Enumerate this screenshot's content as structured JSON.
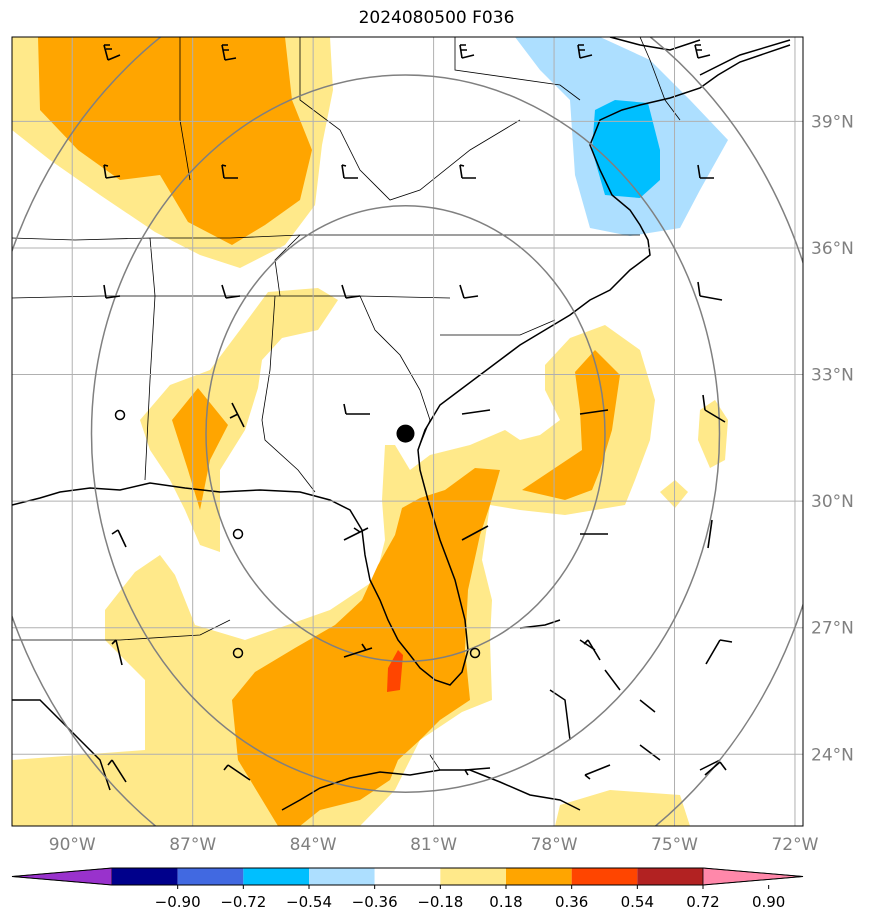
{
  "title": "2024080500 F036",
  "map": {
    "lon_range": [
      -91.5,
      -71.8
    ],
    "lat_range": [
      22.3,
      41.0
    ],
    "lon_ticks": [
      {
        "value": -90,
        "label": "90°W"
      },
      {
        "value": -87,
        "label": "87°W"
      },
      {
        "value": -84,
        "label": "84°W"
      },
      {
        "value": -81,
        "label": "81°W"
      },
      {
        "value": -78,
        "label": "78°W"
      },
      {
        "value": -75,
        "label": "75°W"
      },
      {
        "value": -72,
        "label": "72°W"
      }
    ],
    "lat_ticks": [
      {
        "value": 39,
        "label": "39°N"
      },
      {
        "value": 36,
        "label": "36°N"
      },
      {
        "value": 33,
        "label": "33°N"
      },
      {
        "value": 30,
        "label": "30°N"
      },
      {
        "value": 27,
        "label": "27°N"
      },
      {
        "value": 24,
        "label": "24°N"
      }
    ],
    "center_marker": {
      "lon": -81.7,
      "lat": 31.6
    },
    "range_ring_radii_deg": [
      5.4,
      8.5,
      11.5
    ],
    "fill_colors": {
      "light_yellow": "#ffe98a",
      "orange": "#ffa500",
      "red_orange": "#ff4500",
      "light_blue": "#addfff",
      "deep_sky_blue": "#00bfff"
    },
    "grid": true
  },
  "colorbar": {
    "ticks": [
      "−0.90",
      "−0.72",
      "−0.54",
      "−0.36",
      "−0.18",
      "0.18",
      "0.36",
      "0.54",
      "0.72",
      "0.90"
    ],
    "colors": [
      "#9932cc",
      "#00008b",
      "#4169e1",
      "#00bfff",
      "#addfff",
      "#ffffff",
      "#ffe98a",
      "#ffa500",
      "#ff4500",
      "#b22222",
      "#ff88aa"
    ]
  }
}
